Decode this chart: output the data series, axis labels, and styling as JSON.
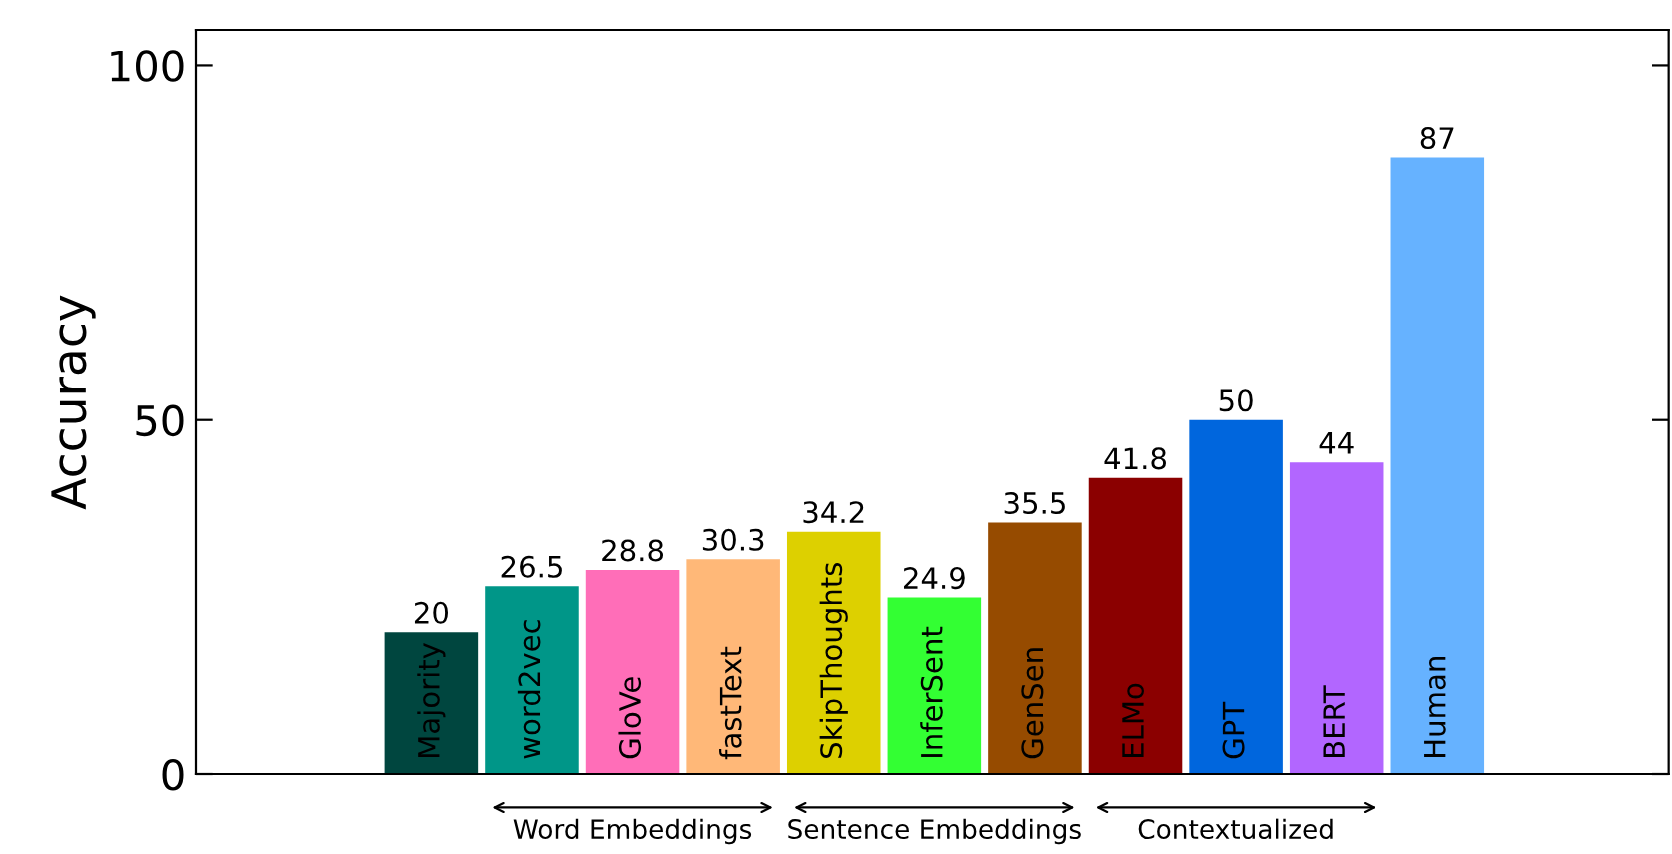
{
  "chart_data": {
    "type": "bar",
    "ylabel": "Accuracy",
    "categories": [
      "Majority",
      "word2vec",
      "GloVe",
      "fastText",
      "SkipThoughts",
      "InferSent",
      "GenSen",
      "ELMo",
      "GPT",
      "BERT",
      "Human"
    ],
    "values": [
      20,
      26.5,
      28.8,
      30.3,
      34.2,
      24.9,
      35.5,
      41.8,
      50,
      44,
      87
    ],
    "colors": [
      "#00463f",
      "#009688",
      "#ff6eb8",
      "#ffb878",
      "#ddd000",
      "#33ff33",
      "#964b00",
      "#8b0000",
      "#0066dd",
      "#b266ff",
      "#66b2ff"
    ],
    "ylim": [
      0,
      105
    ],
    "yticks": [
      0,
      50,
      100
    ],
    "data_labels": true,
    "grid": false,
    "legend": false,
    "annotations": [
      "Word Embeddings",
      "Sentence Embeddings",
      "Contextualized"
    ]
  }
}
